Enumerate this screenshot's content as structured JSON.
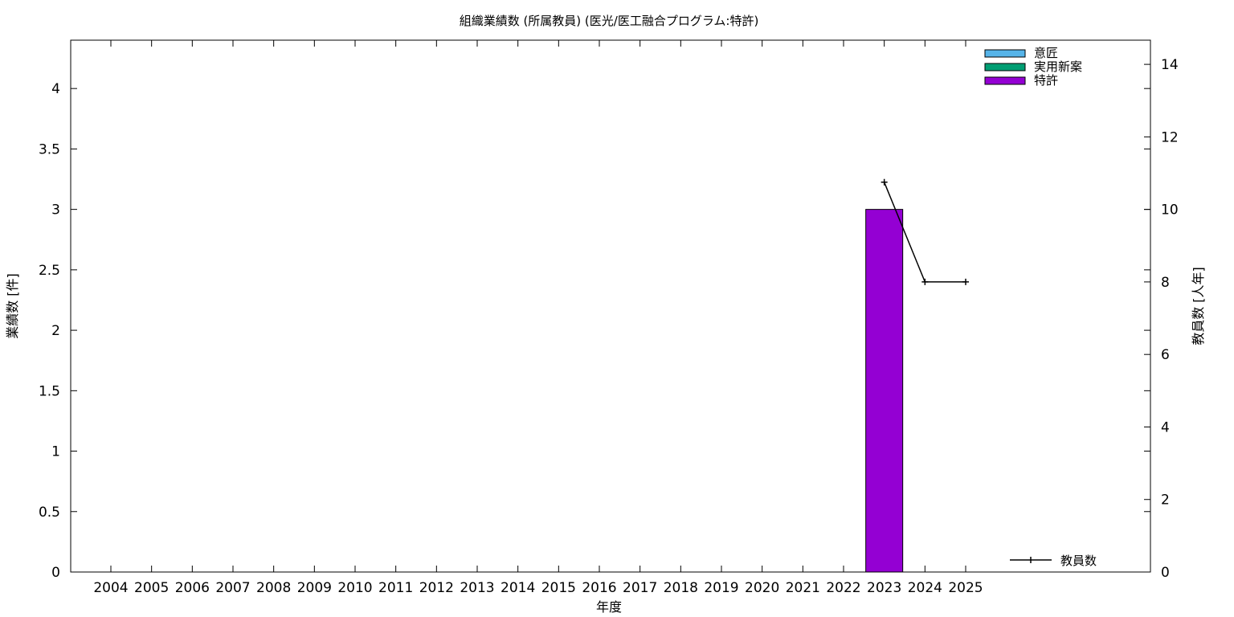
{
  "chart_data": {
    "type": "bar",
    "title": "組織業績数 (所属教員) (医光/医工融合プログラム:特許)",
    "xlabel": "年度",
    "ylabel": "業績数 [件]",
    "y2label": "教員数 [人年]",
    "categories": [
      "2004",
      "2005",
      "2006",
      "2007",
      "2008",
      "2009",
      "2010",
      "2011",
      "2012",
      "2013",
      "2014",
      "2015",
      "2016",
      "2017",
      "2018",
      "2019",
      "2020",
      "2021",
      "2022",
      "2023",
      "2024",
      "2025"
    ],
    "ylim": [
      0,
      4.4
    ],
    "yticks": [
      "0",
      "0.5",
      "1",
      "1.5",
      "2",
      "2.5",
      "3",
      "3.5",
      "4"
    ],
    "y2lim": [
      0,
      14.667
    ],
    "y2ticks": [
      "0",
      "2",
      "4",
      "6",
      "8",
      "10",
      "12",
      "14"
    ],
    "series": [
      {
        "name": "意匠",
        "color": "#56b4e9",
        "values": [
          0,
          0,
          0,
          0,
          0,
          0,
          0,
          0,
          0,
          0,
          0,
          0,
          0,
          0,
          0,
          0,
          0,
          0,
          0,
          0,
          0,
          0
        ]
      },
      {
        "name": "実用新案",
        "color": "#009e73",
        "values": [
          0,
          0,
          0,
          0,
          0,
          0,
          0,
          0,
          0,
          0,
          0,
          0,
          0,
          0,
          0,
          0,
          0,
          0,
          0,
          0,
          0,
          0
        ]
      },
      {
        "name": "特許",
        "color": "#9400d3",
        "values": [
          0,
          0,
          0,
          0,
          0,
          0,
          0,
          0,
          0,
          0,
          0,
          0,
          0,
          0,
          0,
          0,
          0,
          0,
          0,
          3,
          0,
          0
        ]
      }
    ],
    "line_series": {
      "name": "教員数",
      "axis": "right",
      "color": "#000000",
      "points": [
        {
          "x": "2023",
          "y": 10.75
        },
        {
          "x": "2024",
          "y": 8
        },
        {
          "x": "2025",
          "y": 8
        }
      ]
    },
    "legend_position": "top-right",
    "line_legend_position": "bottom-right",
    "grid": false
  }
}
